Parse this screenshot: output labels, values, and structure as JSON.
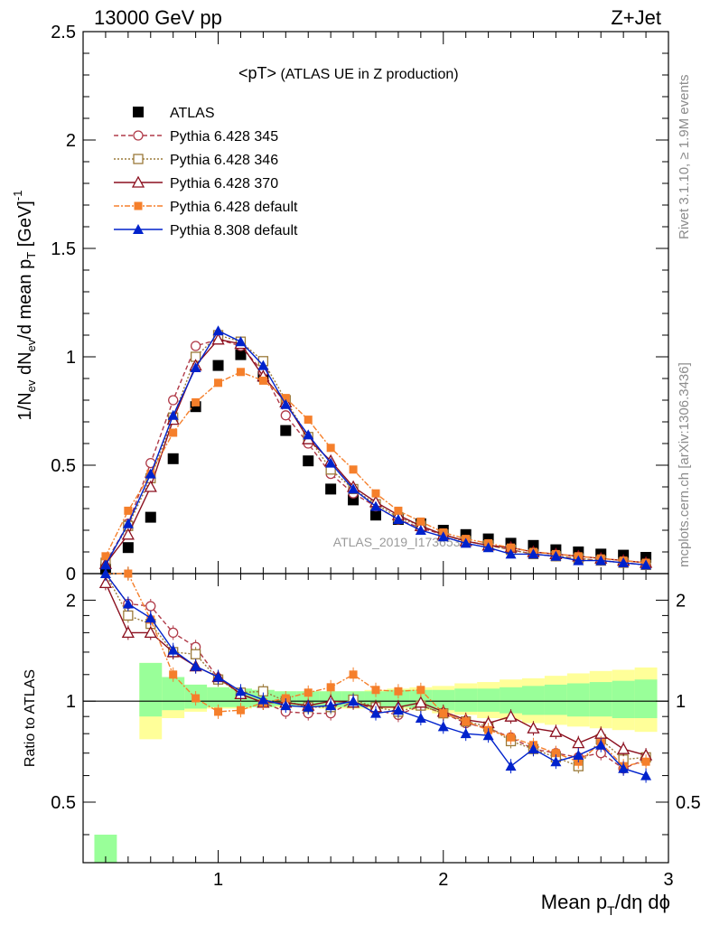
{
  "header": {
    "left": "13000 GeV pp",
    "right": "Z+Jet"
  },
  "side_labels": {
    "rivet": "Rivet 3.1.10, ≥ 1.9M events",
    "mcplots": "mcplots.cern.ch [arXiv:1306.3436]"
  },
  "watermark": "ATLAS_2019_I1736531",
  "plot_title": {
    "main": "<pT>",
    "sub": " (ATLAS UE in Z production)"
  },
  "axes": {
    "ylabel_parts": [
      "1/N",
      "ev",
      " dN",
      "ev",
      "/d mean p",
      "T",
      " [GeV]",
      "-1"
    ],
    "ratio_ylabel": "Ratio to ATLAS",
    "xlabel_parts": [
      "Mean p",
      "T",
      "/dη dϕ"
    ]
  },
  "chart_data": [
    {
      "type": "line",
      "panel": "main",
      "xlim": [
        0.4,
        3.0
      ],
      "ylim": [
        0,
        2.5
      ],
      "yticks": [
        "0",
        "0.5",
        "1",
        "1.5",
        "2",
        "2.5"
      ],
      "xticks": [
        "1",
        "2",
        "3"
      ],
      "x": [
        0.5,
        0.6,
        0.7,
        0.8,
        0.9,
        1.0,
        1.1,
        1.2,
        1.3,
        1.4,
        1.5,
        1.6,
        1.7,
        1.8,
        1.9,
        2.0,
        2.1,
        2.2,
        2.3,
        2.4,
        2.5,
        2.6,
        2.7,
        2.8,
        2.9
      ],
      "series": [
        {
          "name": "ATLAS",
          "color": "#000000",
          "marker": "filled-square",
          "dash": "none",
          "values": [
            0.02,
            0.12,
            0.26,
            0.53,
            0.77,
            0.96,
            1.01,
            0.91,
            0.66,
            0.52,
            0.39,
            0.34,
            0.27,
            0.25,
            0.23,
            0.2,
            0.18,
            0.16,
            0.14,
            0.13,
            0.11,
            0.1,
            0.09,
            0.085,
            0.075
          ]
        },
        {
          "name": "Pythia 6.428 345",
          "color": "#b03a48",
          "marker": "open-circle",
          "dash": "5,3",
          "values": [
            0.05,
            0.23,
            0.51,
            0.8,
            1.05,
            1.08,
            1.05,
            0.93,
            0.73,
            0.6,
            0.46,
            0.37,
            0.31,
            0.25,
            0.21,
            0.18,
            0.15,
            0.13,
            0.11,
            0.09,
            0.08,
            0.07,
            0.06,
            0.05,
            0.04
          ]
        },
        {
          "name": "Pythia 6.428 346",
          "color": "#9b7a3a",
          "marker": "open-square",
          "dash": "2,2",
          "values": [
            0.05,
            0.22,
            0.44,
            0.72,
            1.0,
            1.1,
            1.07,
            0.98,
            0.8,
            0.63,
            0.48,
            0.39,
            0.32,
            0.26,
            0.22,
            0.18,
            0.15,
            0.13,
            0.11,
            0.09,
            0.08,
            0.07,
            0.06,
            0.05,
            0.04
          ]
        },
        {
          "name": "Pythia 6.428 370",
          "color": "#8b0f1e",
          "marker": "open-triangle",
          "dash": "none",
          "values": [
            0.045,
            0.18,
            0.4,
            0.71,
            0.96,
            1.08,
            1.06,
            0.91,
            0.79,
            0.62,
            0.52,
            0.4,
            0.33,
            0.27,
            0.22,
            0.18,
            0.15,
            0.13,
            0.12,
            0.1,
            0.09,
            0.08,
            0.07,
            0.06,
            0.05
          ]
        },
        {
          "name": "Pythia 6.428 default",
          "color": "#f57f2b",
          "marker": "filled-square-small",
          "dash": "6,2,2,2",
          "values": [
            0.08,
            0.29,
            0.46,
            0.65,
            0.79,
            0.88,
            0.93,
            0.89,
            0.81,
            0.71,
            0.58,
            0.48,
            0.37,
            0.29,
            0.24,
            0.19,
            0.16,
            0.14,
            0.12,
            0.1,
            0.09,
            0.08,
            0.07,
            0.06,
            0.05
          ]
        },
        {
          "name": "Pythia 8.308 default",
          "color": "#0022cc",
          "marker": "filled-triangle",
          "dash": "none",
          "values": [
            0.04,
            0.23,
            0.46,
            0.73,
            0.95,
            1.12,
            1.07,
            0.96,
            0.78,
            0.64,
            0.51,
            0.39,
            0.31,
            0.25,
            0.2,
            0.17,
            0.14,
            0.12,
            0.09,
            0.09,
            0.08,
            0.06,
            0.06,
            0.05,
            0.04
          ]
        }
      ],
      "legend_position": "top-left"
    },
    {
      "type": "line",
      "panel": "ratio",
      "xlim": [
        0.4,
        3.0
      ],
      "ylim": [
        0.33,
        2.4
      ],
      "log_y": true,
      "yticks": [
        "0.5",
        "1",
        "2"
      ],
      "reference": 1.0,
      "band_inner": [
        [
          0.4,
          0.0
        ],
        [
          1.55,
          1.8
        ],
        [
          1.3,
          0.9
        ],
        [
          1.18,
          0.94
        ],
        [
          1.12,
          0.95
        ],
        [
          1.1,
          0.96
        ],
        [
          1.09,
          0.96
        ],
        [
          1.08,
          0.96
        ],
        [
          1.07,
          0.97
        ],
        [
          1.07,
          0.97
        ],
        [
          1.07,
          0.96
        ],
        [
          1.07,
          0.96
        ],
        [
          1.07,
          0.96
        ],
        [
          1.08,
          0.96
        ],
        [
          1.08,
          0.95
        ],
        [
          1.08,
          0.94
        ],
        [
          1.09,
          0.93
        ],
        [
          1.09,
          0.93
        ],
        [
          1.1,
          0.92
        ],
        [
          1.11,
          0.91
        ],
        [
          1.12,
          0.91
        ],
        [
          1.13,
          0.9
        ],
        [
          1.14,
          0.9
        ],
        [
          1.15,
          0.89
        ],
        [
          1.16,
          0.89
        ]
      ],
      "band_outer": [
        [
          0.4,
          3.0
        ],
        [
          1.55,
          2.2
        ],
        [
          1.3,
          0.77
        ],
        [
          1.18,
          0.89
        ],
        [
          1.12,
          0.93
        ],
        [
          1.1,
          0.95
        ],
        [
          1.09,
          0.95
        ],
        [
          1.08,
          0.96
        ],
        [
          1.07,
          0.96
        ],
        [
          1.07,
          0.96
        ],
        [
          1.07,
          0.95
        ],
        [
          1.07,
          0.95
        ],
        [
          1.08,
          0.95
        ],
        [
          1.09,
          0.95
        ],
        [
          1.1,
          0.94
        ],
        [
          1.11,
          0.92
        ],
        [
          1.13,
          0.91
        ],
        [
          1.14,
          0.89
        ],
        [
          1.16,
          0.88
        ],
        [
          1.17,
          0.86
        ],
        [
          1.19,
          0.85
        ],
        [
          1.21,
          0.84
        ],
        [
          1.23,
          0.83
        ],
        [
          1.24,
          0.82
        ],
        [
          1.26,
          0.81
        ]
      ],
      "series": [
        {
          "name": "Pythia 6.428 345",
          "values": [
            2.5,
            1.95,
            1.92,
            1.6,
            1.45,
            1.17,
            1.05,
            0.99,
            0.93,
            0.92,
            0.92,
            1.0,
            0.94,
            0.91,
            0.97,
            0.92,
            0.86,
            0.83,
            0.78,
            0.72,
            0.7,
            0.68,
            0.7,
            0.63,
            0.67
          ]
        },
        {
          "name": "Pythia 6.428 346",
          "values": [
            2.5,
            1.8,
            1.7,
            1.4,
            1.38,
            1.16,
            1.06,
            1.07,
            1.0,
            0.96,
            0.96,
            1.01,
            0.96,
            0.93,
            0.97,
            0.92,
            0.87,
            0.84,
            0.76,
            0.72,
            0.68,
            0.64,
            0.77,
            0.67,
            0.68
          ]
        },
        {
          "name": "Pythia 6.428 370",
          "values": [
            2.25,
            1.6,
            1.6,
            1.4,
            1.27,
            1.18,
            1.05,
            0.99,
            0.99,
            0.97,
            1.0,
            0.99,
            0.96,
            0.96,
            0.99,
            0.93,
            0.88,
            0.86,
            0.9,
            0.83,
            0.81,
            0.75,
            0.8,
            0.72,
            0.69
          ]
        },
        {
          "name": "Pythia 6.428 default",
          "values": [
            2.5,
            2.4,
            1.75,
            1.2,
            1.02,
            0.93,
            0.94,
            0.99,
            1.02,
            1.06,
            1.1,
            1.2,
            1.08,
            1.07,
            1.08,
            0.92,
            0.87,
            0.82,
            0.78,
            0.74,
            0.7,
            0.66,
            0.75,
            0.64,
            0.66
          ]
        },
        {
          "name": "Pythia 8.308 default",
          "values": [
            2.4,
            1.95,
            1.77,
            1.42,
            1.27,
            1.18,
            1.07,
            1.01,
            0.97,
            0.96,
            0.97,
            1.0,
            0.92,
            0.94,
            0.89,
            0.84,
            0.8,
            0.79,
            0.64,
            0.72,
            0.66,
            0.69,
            0.74,
            0.63,
            0.6
          ]
        }
      ]
    }
  ]
}
